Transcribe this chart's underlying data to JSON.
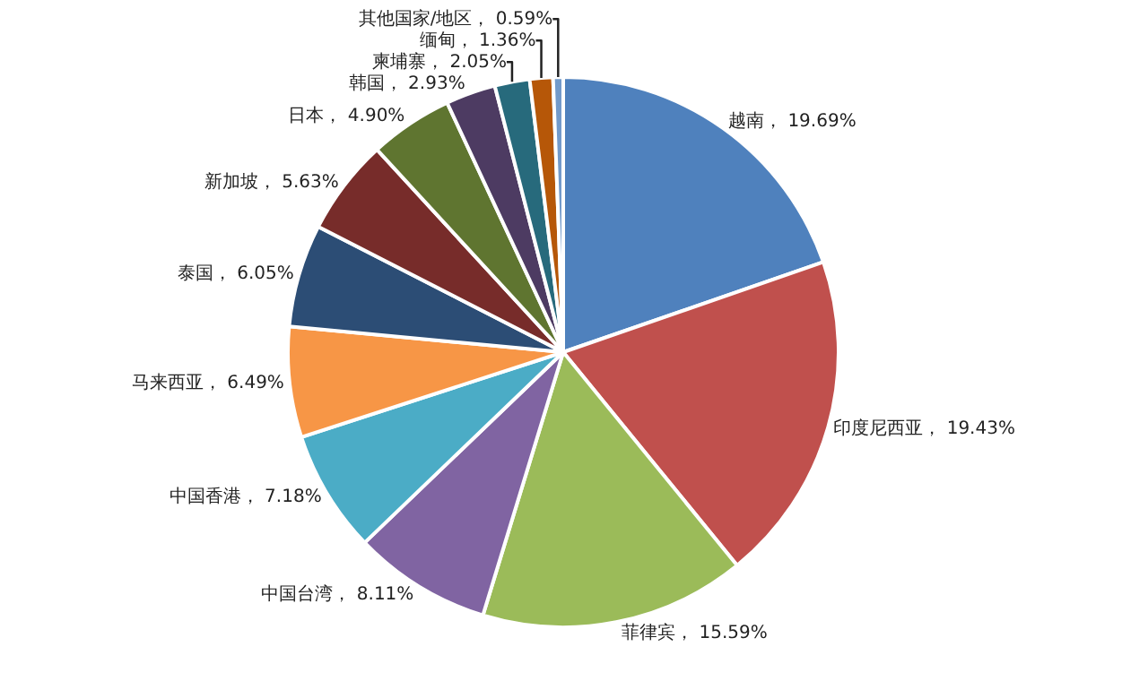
{
  "chart_data": {
    "type": "pie",
    "categories": [
      "越南",
      "印度尼西亚",
      "菲律宾",
      "中国台湾",
      "中国香港",
      "马来西亚",
      "泰国",
      "新加坡",
      "日本",
      "韩国",
      "柬埔寨",
      "缅甸",
      "其他国家/地区"
    ],
    "values": [
      19.69,
      19.43,
      15.59,
      8.11,
      7.18,
      6.49,
      6.05,
      5.63,
      4.9,
      2.93,
      2.05,
      1.36,
      0.59
    ],
    "value_labels": [
      "19.69%",
      "19.43%",
      "15.59%",
      "8.11%",
      "7.18%",
      "6.49%",
      "6.05%",
      "5.63%",
      "4.90%",
      "2.93%",
      "2.05%",
      "1.36%",
      "0.59%"
    ],
    "colors": [
      "#4f81bd",
      "#c0504d",
      "#9bbb59",
      "#8064a2",
      "#4bacc6",
      "#f79646",
      "#2c4d75",
      "#772c2a",
      "#5f7530",
      "#4d3b62",
      "#276a7c",
      "#b65708",
      "#729aca"
    ]
  }
}
